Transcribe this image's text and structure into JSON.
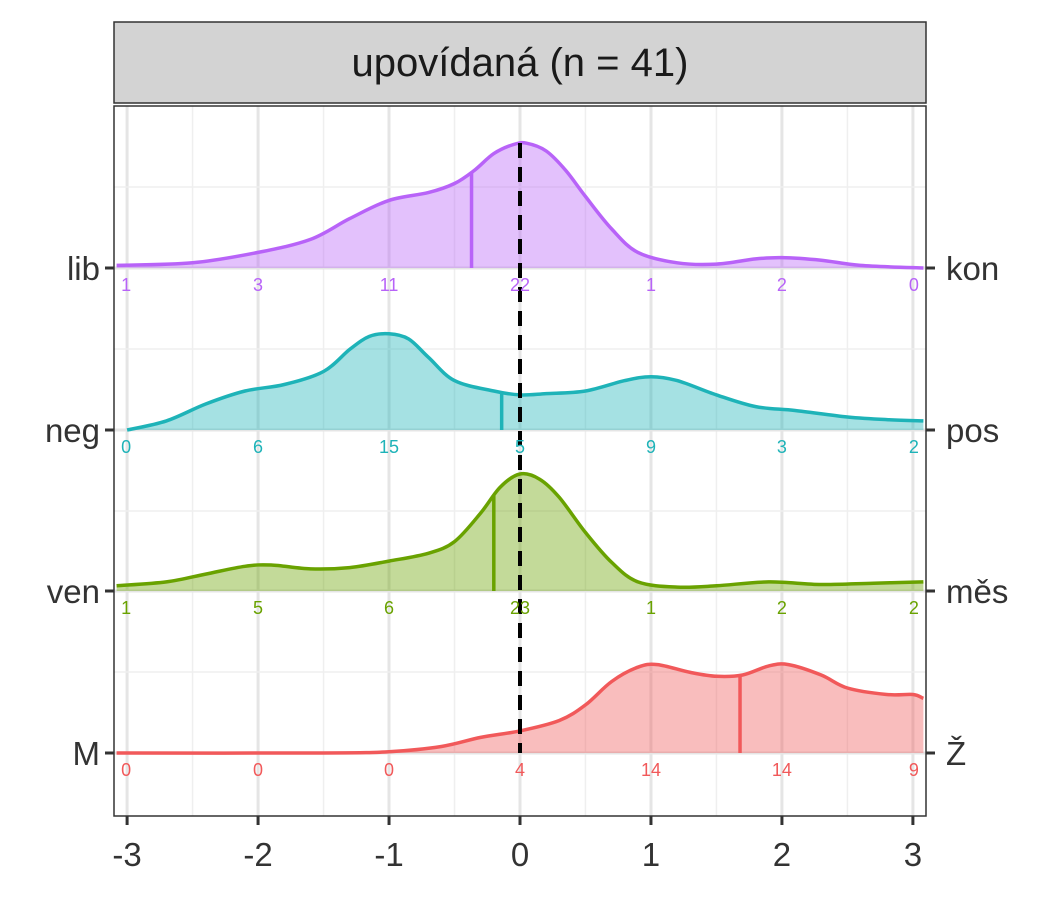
{
  "chart_data": {
    "type": "area",
    "panel_title": "upovídaná (n = 41)",
    "x_ticks": [
      -3,
      -2,
      -1,
      0,
      1,
      2,
      3
    ],
    "xlim": [
      -3.1,
      3.1
    ],
    "grid": true,
    "reference_line_x": 0,
    "series": [
      {
        "left_label": "lib",
        "right_label": "kon",
        "color": "#B863F8",
        "mean": -0.37,
        "counts": [
          "1",
          "3",
          "11",
          "22",
          "1",
          "2",
          "0"
        ],
        "density": [
          [
            -3.08,
            0.02
          ],
          [
            -2.5,
            0.04
          ],
          [
            -2.0,
            0.12
          ],
          [
            -1.6,
            0.22
          ],
          [
            -1.3,
            0.38
          ],
          [
            -1.0,
            0.52
          ],
          [
            -0.7,
            0.58
          ],
          [
            -0.5,
            0.65
          ],
          [
            -0.35,
            0.75
          ],
          [
            -0.2,
            0.88
          ],
          [
            -0.05,
            0.95
          ],
          [
            0.05,
            0.96
          ],
          [
            0.2,
            0.9
          ],
          [
            0.35,
            0.75
          ],
          [
            0.5,
            0.55
          ],
          [
            0.7,
            0.3
          ],
          [
            0.9,
            0.12
          ],
          [
            1.2,
            0.04
          ],
          [
            1.5,
            0.03
          ],
          [
            1.8,
            0.07
          ],
          [
            2.0,
            0.08
          ],
          [
            2.3,
            0.06
          ],
          [
            2.6,
            0.02
          ],
          [
            3.08,
            0.0
          ]
        ]
      },
      {
        "left_label": "neg",
        "right_label": "pos",
        "color": "#1EB3B8",
        "mean": -0.14,
        "counts": [
          "0",
          "6",
          "15",
          "5",
          "9",
          "3",
          "2"
        ],
        "density": [
          [
            -3.0,
            0.0
          ],
          [
            -2.7,
            0.07
          ],
          [
            -2.4,
            0.2
          ],
          [
            -2.1,
            0.3
          ],
          [
            -1.8,
            0.35
          ],
          [
            -1.5,
            0.45
          ],
          [
            -1.3,
            0.62
          ],
          [
            -1.15,
            0.72
          ],
          [
            -1.0,
            0.74
          ],
          [
            -0.85,
            0.7
          ],
          [
            -0.7,
            0.56
          ],
          [
            -0.5,
            0.38
          ],
          [
            -0.2,
            0.3
          ],
          [
            0.0,
            0.27
          ],
          [
            0.2,
            0.28
          ],
          [
            0.5,
            0.3
          ],
          [
            0.8,
            0.38
          ],
          [
            1.0,
            0.41
          ],
          [
            1.2,
            0.38
          ],
          [
            1.5,
            0.27
          ],
          [
            1.8,
            0.18
          ],
          [
            2.1,
            0.15
          ],
          [
            2.5,
            0.1
          ],
          [
            2.8,
            0.08
          ],
          [
            3.08,
            0.07
          ]
        ]
      },
      {
        "left_label": "ven",
        "right_label": "měs",
        "color": "#69A200",
        "mean": -0.2,
        "counts": [
          "1",
          "5",
          "6",
          "23",
          "1",
          "2",
          "2"
        ],
        "density": [
          [
            -3.08,
            0.04
          ],
          [
            -2.7,
            0.07
          ],
          [
            -2.4,
            0.13
          ],
          [
            -2.1,
            0.19
          ],
          [
            -1.9,
            0.2
          ],
          [
            -1.6,
            0.17
          ],
          [
            -1.3,
            0.18
          ],
          [
            -1.0,
            0.23
          ],
          [
            -0.7,
            0.29
          ],
          [
            -0.5,
            0.38
          ],
          [
            -0.3,
            0.6
          ],
          [
            -0.15,
            0.8
          ],
          [
            0.0,
            0.9
          ],
          [
            0.15,
            0.86
          ],
          [
            0.3,
            0.72
          ],
          [
            0.5,
            0.45
          ],
          [
            0.7,
            0.22
          ],
          [
            0.9,
            0.07
          ],
          [
            1.2,
            0.03
          ],
          [
            1.5,
            0.04
          ],
          [
            1.9,
            0.07
          ],
          [
            2.3,
            0.05
          ],
          [
            2.7,
            0.06
          ],
          [
            3.08,
            0.07
          ]
        ]
      },
      {
        "left_label": "M",
        "right_label": "Ž",
        "color": "#F1595A",
        "mean": 1.68,
        "counts": [
          "0",
          "0",
          "0",
          "4",
          "14",
          "14",
          "9"
        ],
        "density": [
          [
            -3.08,
            0.0
          ],
          [
            -1.5,
            0.0
          ],
          [
            -1.0,
            0.01
          ],
          [
            -0.6,
            0.05
          ],
          [
            -0.3,
            0.12
          ],
          [
            0.0,
            0.17
          ],
          [
            0.3,
            0.25
          ],
          [
            0.5,
            0.37
          ],
          [
            0.7,
            0.55
          ],
          [
            0.9,
            0.66
          ],
          [
            1.05,
            0.68
          ],
          [
            1.3,
            0.62
          ],
          [
            1.5,
            0.59
          ],
          [
            1.7,
            0.6
          ],
          [
            1.9,
            0.67
          ],
          [
            2.05,
            0.68
          ],
          [
            2.3,
            0.6
          ],
          [
            2.5,
            0.5
          ],
          [
            2.8,
            0.45
          ],
          [
            3.0,
            0.45
          ],
          [
            3.08,
            0.42
          ]
        ]
      }
    ]
  }
}
